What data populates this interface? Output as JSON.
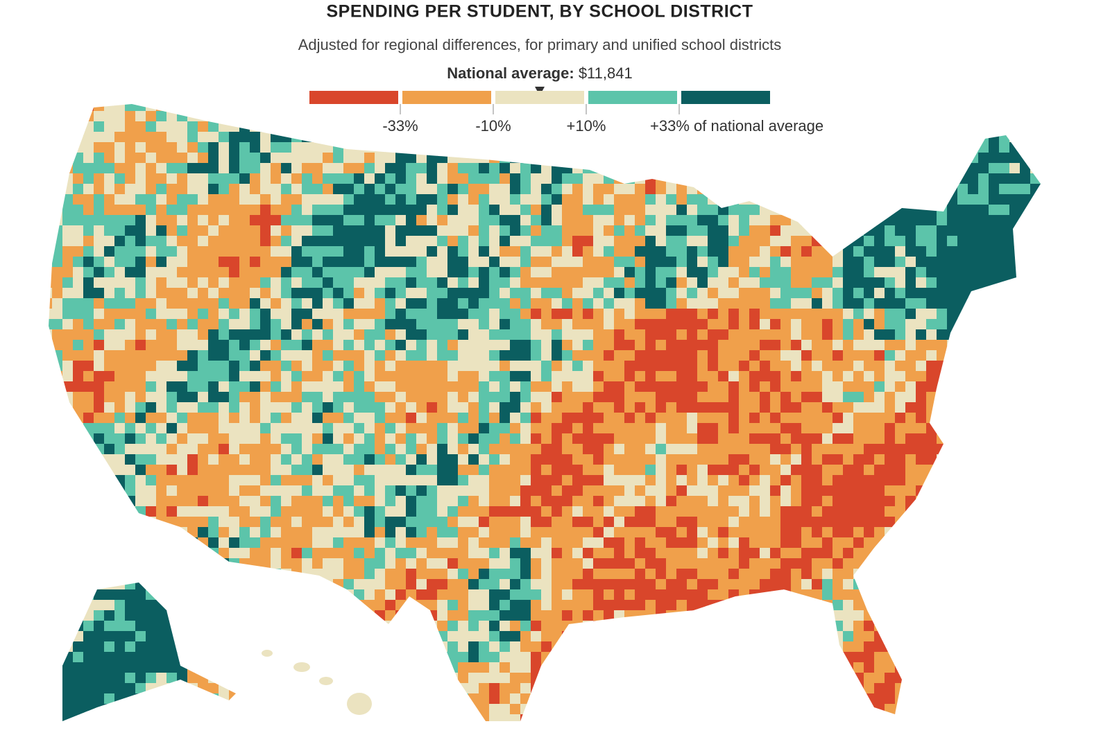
{
  "header": {
    "title": "SPENDING PER STUDENT, BY SCHOOL DISTRICT",
    "subtitle": "Adjusted for regional differences, for primary and unified school districts",
    "average_label": "National average:",
    "average_value": "$11,841"
  },
  "legend": {
    "colors": [
      "#d9462b",
      "#f0a04b",
      "#ebe3c0",
      "#5cc4aa",
      "#0b5e60"
    ],
    "labels": [
      "-33%",
      "-10%",
      "+10%",
      "+33% of national average"
    ]
  }
}
